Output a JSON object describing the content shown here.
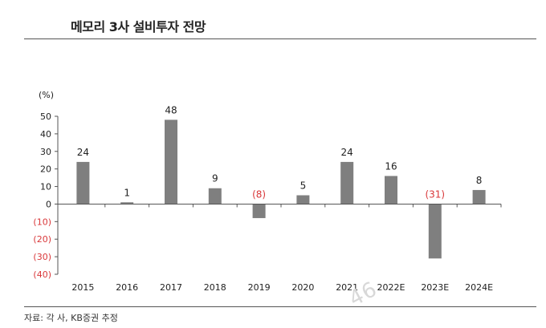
{
  "header": {
    "title": "메모리 3사 설비투자 전망"
  },
  "footer": {
    "source": "자료: 각 사, KB증권 추정",
    "watermark": "46"
  },
  "colors": {
    "bar": "#7f7f7f",
    "negative_label": "#d9383a",
    "text": "#222222",
    "axis": "#555555"
  },
  "chart_data": {
    "type": "bar",
    "unit_label": "(%)",
    "categories": [
      "2015",
      "2016",
      "2017",
      "2018",
      "2019",
      "2020",
      "2021",
      "2022E",
      "2023E",
      "2024E"
    ],
    "values": [
      24,
      1,
      48,
      9,
      -8,
      5,
      24,
      16,
      -31,
      8
    ],
    "data_labels": [
      "24",
      "1",
      "48",
      "9",
      "(8)",
      "5",
      "24",
      "16",
      "(31)",
      "8"
    ],
    "ylim": [
      -40,
      50
    ],
    "yticks": [
      50,
      40,
      30,
      20,
      10,
      0,
      -10,
      -20,
      -30,
      -40
    ],
    "ytick_labels": [
      "50",
      "40",
      "30",
      "20",
      "10",
      "0",
      "(10)",
      "(20)",
      "(30)",
      "(40)"
    ],
    "grid": false,
    "legend": "none"
  }
}
